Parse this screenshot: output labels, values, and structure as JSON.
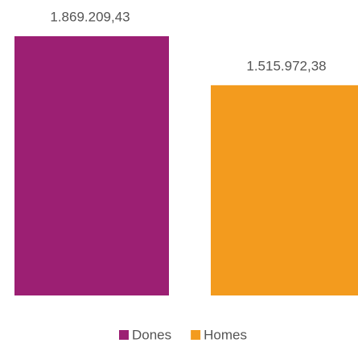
{
  "chart_data": {
    "type": "bar",
    "categories": [
      null
    ],
    "series": [
      {
        "name": "Dones",
        "color": "#9c1f73",
        "values": [
          1869209.43
        ],
        "value_labels": [
          "1.869.209,43"
        ]
      },
      {
        "name": "Homes",
        "color": "#f39b1e",
        "values": [
          1515972.38
        ],
        "value_labels": [
          "1.515.972,38"
        ]
      }
    ],
    "legend": "bottom"
  }
}
